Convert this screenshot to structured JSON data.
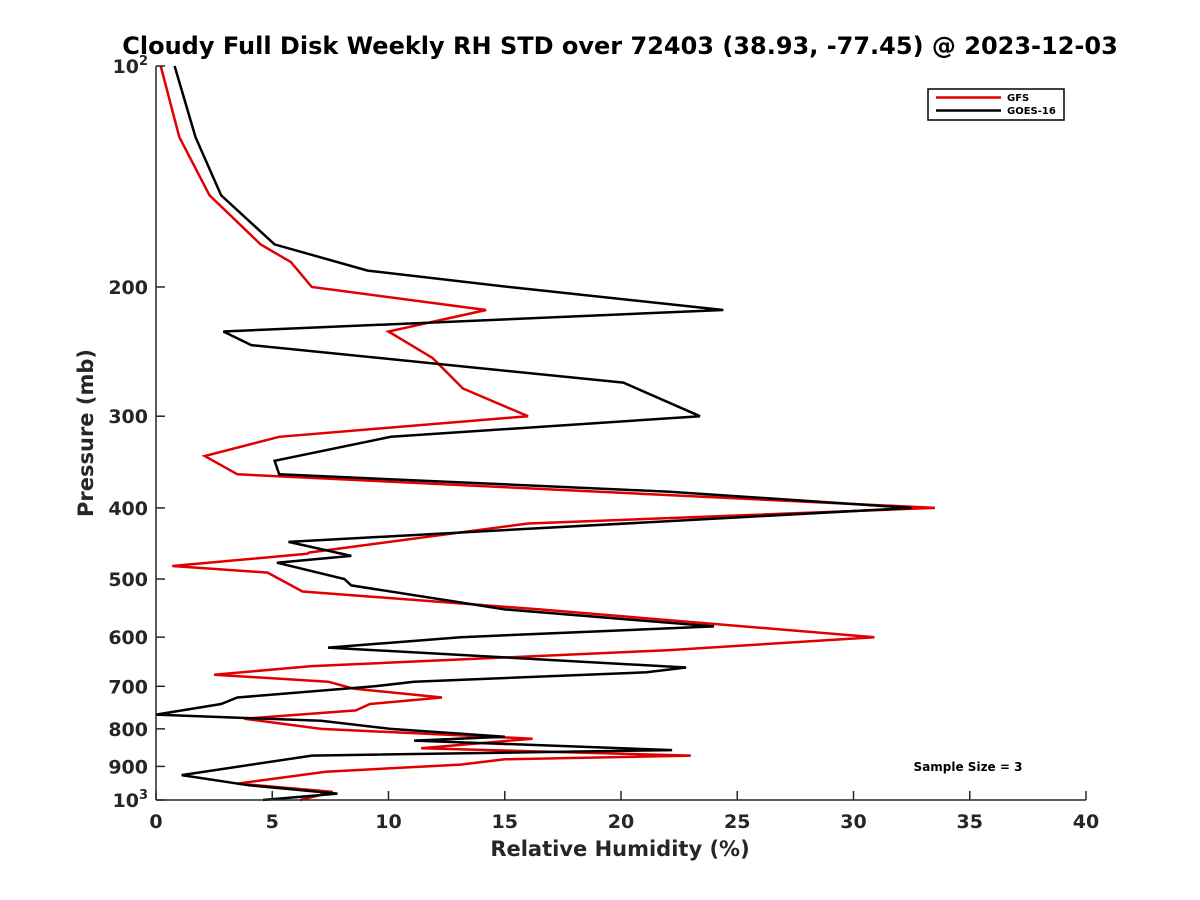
{
  "chart_data": {
    "type": "line",
    "title": "Cloudy Full Disk Weekly RH STD over 72403 (38.93, -77.45) @ 2023-12-03",
    "xlabel": "Relative Humidity (%)",
    "ylabel": "Pressure (mb)",
    "xlim": [
      0,
      40
    ],
    "ylim": [
      100,
      1000
    ],
    "y_scale": "log",
    "y_reversed": true,
    "x_ticks": [
      "0",
      "5",
      "10",
      "15",
      "20",
      "25",
      "30",
      "35",
      "40"
    ],
    "y_ticks": [
      {
        "value": 100,
        "label": "10",
        "sup": "2"
      },
      {
        "value": 200,
        "label": "200",
        "sup": ""
      },
      {
        "value": 300,
        "label": "300",
        "sup": ""
      },
      {
        "value": 400,
        "label": "400",
        "sup": ""
      },
      {
        "value": 500,
        "label": "500",
        "sup": ""
      },
      {
        "value": 600,
        "label": "600",
        "sup": ""
      },
      {
        "value": 700,
        "label": "700",
        "sup": ""
      },
      {
        "value": 800,
        "label": "800",
        "sup": ""
      },
      {
        "value": 900,
        "label": "900",
        "sup": ""
      },
      {
        "value": 1000,
        "label": "10",
        "sup": "3"
      }
    ],
    "grid": false,
    "legend_position": "top-right",
    "annotation": "Sample Size = 3",
    "series": [
      {
        "name": "GFS",
        "color": "#e00000",
        "points": [
          [
            0.2,
            100
          ],
          [
            1.0,
            125
          ],
          [
            2.3,
            150
          ],
          [
            4.5,
            175
          ],
          [
            5.8,
            185
          ],
          [
            6.7,
            200
          ],
          [
            14.2,
            215
          ],
          [
            10.0,
            230
          ],
          [
            11.9,
            250
          ],
          [
            13.2,
            275
          ],
          [
            16.0,
            300
          ],
          [
            5.3,
            320
          ],
          [
            2.1,
            340
          ],
          [
            3.5,
            360
          ],
          [
            33.5,
            400
          ],
          [
            16.0,
            420
          ],
          [
            6.6,
            460
          ],
          [
            6.5,
            462
          ],
          [
            0.7,
            480
          ],
          [
            4.8,
            490
          ],
          [
            6.3,
            520
          ],
          [
            16.5,
            550
          ],
          [
            30.9,
            600
          ],
          [
            22.0,
            625
          ],
          [
            6.7,
            657
          ],
          [
            2.5,
            675
          ],
          [
            7.4,
            690
          ],
          [
            8.5,
            705
          ],
          [
            12.3,
            725
          ],
          [
            9.2,
            740
          ],
          [
            8.6,
            755
          ],
          [
            3.8,
            775
          ],
          [
            7.1,
            800
          ],
          [
            16.2,
            825
          ],
          [
            11.4,
            850
          ],
          [
            23.0,
            870
          ],
          [
            15.0,
            880
          ],
          [
            13.1,
            895
          ],
          [
            7.3,
            915
          ],
          [
            3.5,
            950
          ],
          [
            7.6,
            975
          ],
          [
            6.2,
            1000
          ]
        ]
      },
      {
        "name": "GOES-16",
        "color": "#000000",
        "points": [
          [
            0.8,
            100
          ],
          [
            1.7,
            125
          ],
          [
            2.8,
            150
          ],
          [
            5.1,
            175
          ],
          [
            9.1,
            190
          ],
          [
            15.2,
            200
          ],
          [
            24.4,
            215
          ],
          [
            2.9,
            230
          ],
          [
            4.1,
            240
          ],
          [
            20.1,
            270
          ],
          [
            23.4,
            300
          ],
          [
            10.1,
            320
          ],
          [
            5.1,
            345
          ],
          [
            5.3,
            360
          ],
          [
            22.0,
            380
          ],
          [
            32.5,
            400
          ],
          [
            5.7,
            445
          ],
          [
            8.4,
            465
          ],
          [
            5.2,
            475
          ],
          [
            8.1,
            500
          ],
          [
            8.4,
            510
          ],
          [
            15.0,
            550
          ],
          [
            24.0,
            580
          ],
          [
            13.1,
            600
          ],
          [
            7.4,
            620
          ],
          [
            22.8,
            660
          ],
          [
            21.1,
            670
          ],
          [
            11.1,
            690
          ],
          [
            9.4,
            700
          ],
          [
            3.5,
            725
          ],
          [
            2.8,
            740
          ],
          [
            0.0,
            765
          ],
          [
            7.1,
            780
          ],
          [
            10.1,
            800
          ],
          [
            15.0,
            820
          ],
          [
            11.1,
            830
          ],
          [
            22.2,
            855
          ],
          [
            6.7,
            870
          ],
          [
            1.1,
            925
          ],
          [
            4.0,
            955
          ],
          [
            7.8,
            980
          ],
          [
            4.6,
            1000
          ]
        ]
      }
    ]
  }
}
